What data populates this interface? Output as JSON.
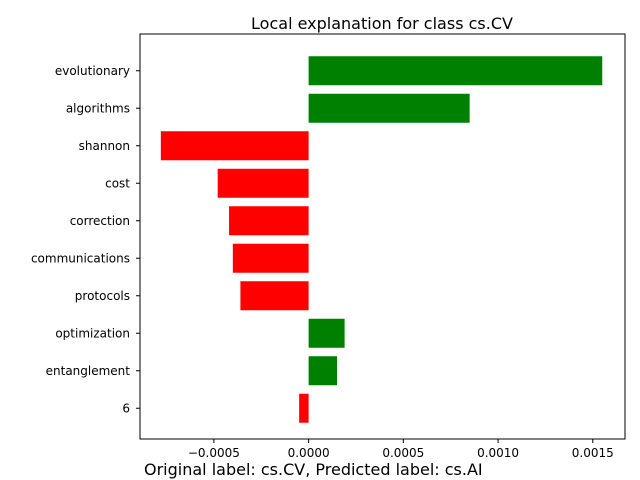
{
  "chart_data": {
    "type": "bar",
    "orientation": "horizontal",
    "title": "Local explanation for class cs.CV",
    "xlabel": "",
    "ylabel": "",
    "categories": [
      "evolutionary",
      "algorithms",
      "shannon",
      "cost",
      "correction",
      "communications",
      "protocols",
      "optimization",
      "entanglement",
      "6"
    ],
    "values": [
      0.00155,
      0.00085,
      -0.00078,
      -0.00048,
      -0.00042,
      -0.0004,
      -0.00036,
      0.00019,
      0.00015,
      -5e-05
    ],
    "xticks": [
      -0.0005,
      0.0,
      0.0005,
      0.001,
      0.0015
    ],
    "xtick_labels": [
      "−0.0005",
      "0.0000",
      "0.0005",
      "0.0010",
      "0.0015"
    ],
    "xlim": [
      -0.00089,
      0.00167
    ],
    "colors": {
      "positive": "#008000",
      "negative": "#ff0000"
    },
    "grid": false,
    "legend": "none"
  },
  "caption": "Original label: cs.CV, Predicted label: cs.AI"
}
